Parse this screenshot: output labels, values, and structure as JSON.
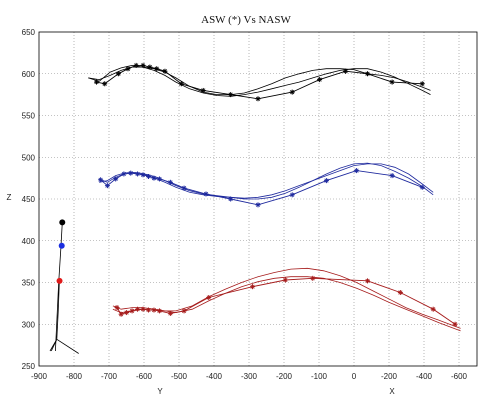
{
  "chart_data": {
    "type": "line",
    "title": "ASW (*) Vs NASW",
    "ylabel": "Z",
    "xlabel_left": "Y",
    "xlabel_right": "X",
    "ylim": [
      250,
      650
    ],
    "x_ticks": [
      "-900",
      "-800",
      "-700",
      "-600",
      "-500",
      "-400",
      "-300",
      "-200",
      "-100",
      "0",
      "-200",
      "-400",
      "-600"
    ],
    "y_ticks": [
      "250",
      "300",
      "350",
      "400",
      "450",
      "500",
      "550",
      "600",
      "650"
    ],
    "grid": true,
    "colors": {
      "top": "#000000",
      "middle": "#1f2a9e",
      "bottom": "#a61c1c",
      "skeleton": "#000000",
      "joint_top": "#000000",
      "joint_mid": "#1a2ee0",
      "joint_low": "#e01a1a"
    },
    "series": [
      {
        "key": "top",
        "asw": {
          "x": [
            -690,
            -660,
            -610,
            -575,
            -545,
            -520,
            -495,
            -470,
            -440,
            -380,
            -300,
            -200,
            -100,
            25,
            125,
            220,
            300,
            390,
            500
          ],
          "y": [
            590,
            588,
            600,
            606,
            610,
            610,
            608,
            606,
            603,
            588,
            580,
            575,
            570,
            578,
            593,
            603,
            600,
            590,
            588
          ]
        },
        "nasw_a": {
          "x": [
            -720,
            -680,
            -640,
            -600,
            -560,
            -520,
            -480,
            -440,
            -400,
            -350,
            -300,
            -250,
            -200,
            -150,
            -100,
            -50,
            0,
            50,
            100,
            150,
            200,
            250,
            300,
            350,
            400,
            450,
            500,
            530
          ],
          "y": [
            595,
            593,
            598,
            604,
            608,
            608,
            606,
            602,
            595,
            585,
            578,
            575,
            575,
            577,
            582,
            588,
            595,
            600,
            604,
            606,
            606,
            605,
            600,
            598,
            595,
            590,
            584,
            580
          ]
        },
        "nasw_b": {
          "x": [
            -720,
            -680,
            -640,
            -600,
            -560,
            -520,
            -480,
            -440,
            -400,
            -350,
            -300,
            -250,
            -200,
            -150,
            -100,
            -50,
            0,
            50,
            100,
            150,
            200,
            250,
            300,
            350,
            400,
            450,
            500,
            530
          ],
          "y": [
            595,
            591,
            602,
            607,
            610,
            608,
            604,
            598,
            590,
            582,
            577,
            574,
            573,
            575,
            578,
            582,
            586,
            590,
            595,
            600,
            604,
            606,
            606,
            602,
            596,
            588,
            580,
            575
          ]
        }
      },
      {
        "key": "middle",
        "asw": {
          "x": [
            -675,
            -650,
            -620,
            -590,
            -565,
            -540,
            -520,
            -500,
            -480,
            -460,
            -420,
            -370,
            -290,
            -200,
            -100,
            25,
            150,
            260,
            390,
            500
          ],
          "y": [
            473,
            466,
            474,
            480,
            481,
            480,
            479,
            477,
            475,
            474,
            470,
            463,
            456,
            450,
            443,
            455,
            472,
            484,
            478,
            464
          ]
        },
        "nasw_a": {
          "x": [
            -680,
            -650,
            -620,
            -590,
            -560,
            -530,
            -500,
            -470,
            -440,
            -400,
            -350,
            -300,
            -250,
            -200,
            -150,
            -100,
            -50,
            0,
            50,
            100,
            150,
            200,
            250,
            300,
            350,
            400,
            450,
            500,
            540
          ],
          "y": [
            470,
            472,
            478,
            481,
            482,
            481,
            479,
            476,
            472,
            466,
            460,
            456,
            454,
            452,
            450,
            450,
            452,
            457,
            464,
            472,
            480,
            487,
            492,
            493,
            490,
            483,
            475,
            465,
            455
          ]
        },
        "nasw_b": {
          "x": [
            -680,
            -650,
            -620,
            -590,
            -560,
            -530,
            -500,
            -470,
            -440,
            -400,
            -350,
            -300,
            -250,
            -200,
            -150,
            -100,
            -50,
            0,
            50,
            100,
            150,
            200,
            250,
            300,
            350,
            400,
            450,
            500,
            540
          ],
          "y": [
            474,
            470,
            476,
            480,
            481,
            480,
            478,
            474,
            470,
            464,
            458,
            455,
            453,
            452,
            451,
            452,
            455,
            460,
            466,
            472,
            478,
            484,
            490,
            492,
            492,
            488,
            480,
            468,
            458
          ]
        }
      },
      {
        "key": "bottom",
        "asw": {
          "x": [
            -615,
            -600,
            -580,
            -560,
            -540,
            -520,
            -500,
            -480,
            -460,
            -420,
            -370,
            -280,
            -120,
            0,
            100,
            300,
            420,
            540,
            620
          ],
          "y": [
            320,
            312,
            314,
            316,
            318,
            318,
            317,
            317,
            316,
            313,
            316,
            332,
            345,
            353,
            355,
            352,
            338,
            318,
            300
          ]
        },
        "nasw_a": {
          "x": [
            -630,
            -600,
            -560,
            -520,
            -480,
            -440,
            -400,
            -340,
            -280,
            -220,
            -160,
            -100,
            -40,
            20,
            80,
            140,
            200,
            260,
            320,
            380,
            440,
            500,
            560,
            600,
            640
          ],
          "y": [
            322,
            318,
            320,
            320,
            318,
            316,
            316,
            322,
            333,
            342,
            350,
            357,
            362,
            366,
            367,
            364,
            358,
            350,
            340,
            330,
            320,
            312,
            305,
            300,
            295
          ]
        },
        "nasw_b": {
          "x": [
            -630,
            -600,
            -560,
            -520,
            -480,
            -440,
            -400,
            -340,
            -280,
            -220,
            -160,
            -100,
            -40,
            20,
            80,
            140,
            200,
            260,
            320,
            380,
            440,
            500,
            560,
            600,
            640
          ],
          "y": [
            318,
            314,
            316,
            318,
            317,
            316,
            314,
            318,
            328,
            337,
            345,
            351,
            355,
            357,
            357,
            355,
            350,
            343,
            335,
            326,
            318,
            310,
            302,
            297,
            292
          ]
        }
      }
    ],
    "skeleton": {
      "lines": [
        {
          "x": [
            -815,
            -820,
            -828,
            -840
          ],
          "y": [
            422,
            392,
            350,
            268
          ]
        },
        {
          "x": [
            -826,
            -830,
            -835
          ],
          "y": [
            350,
            315,
            282
          ]
        },
        {
          "x": [
            -835,
            -855
          ],
          "y": [
            282,
            268
          ]
        },
        {
          "x": [
            -835,
            -755
          ],
          "y": [
            282,
            265
          ]
        },
        {
          "x": [
            -860,
            -835
          ],
          "y": [
            268,
            282
          ]
        }
      ],
      "joints": [
        {
          "x": -815,
          "y": 422,
          "color": "joint_top"
        },
        {
          "x": -817,
          "y": 394,
          "color": "joint_mid"
        },
        {
          "x": -825,
          "y": 352,
          "color": "joint_low"
        }
      ]
    }
  }
}
